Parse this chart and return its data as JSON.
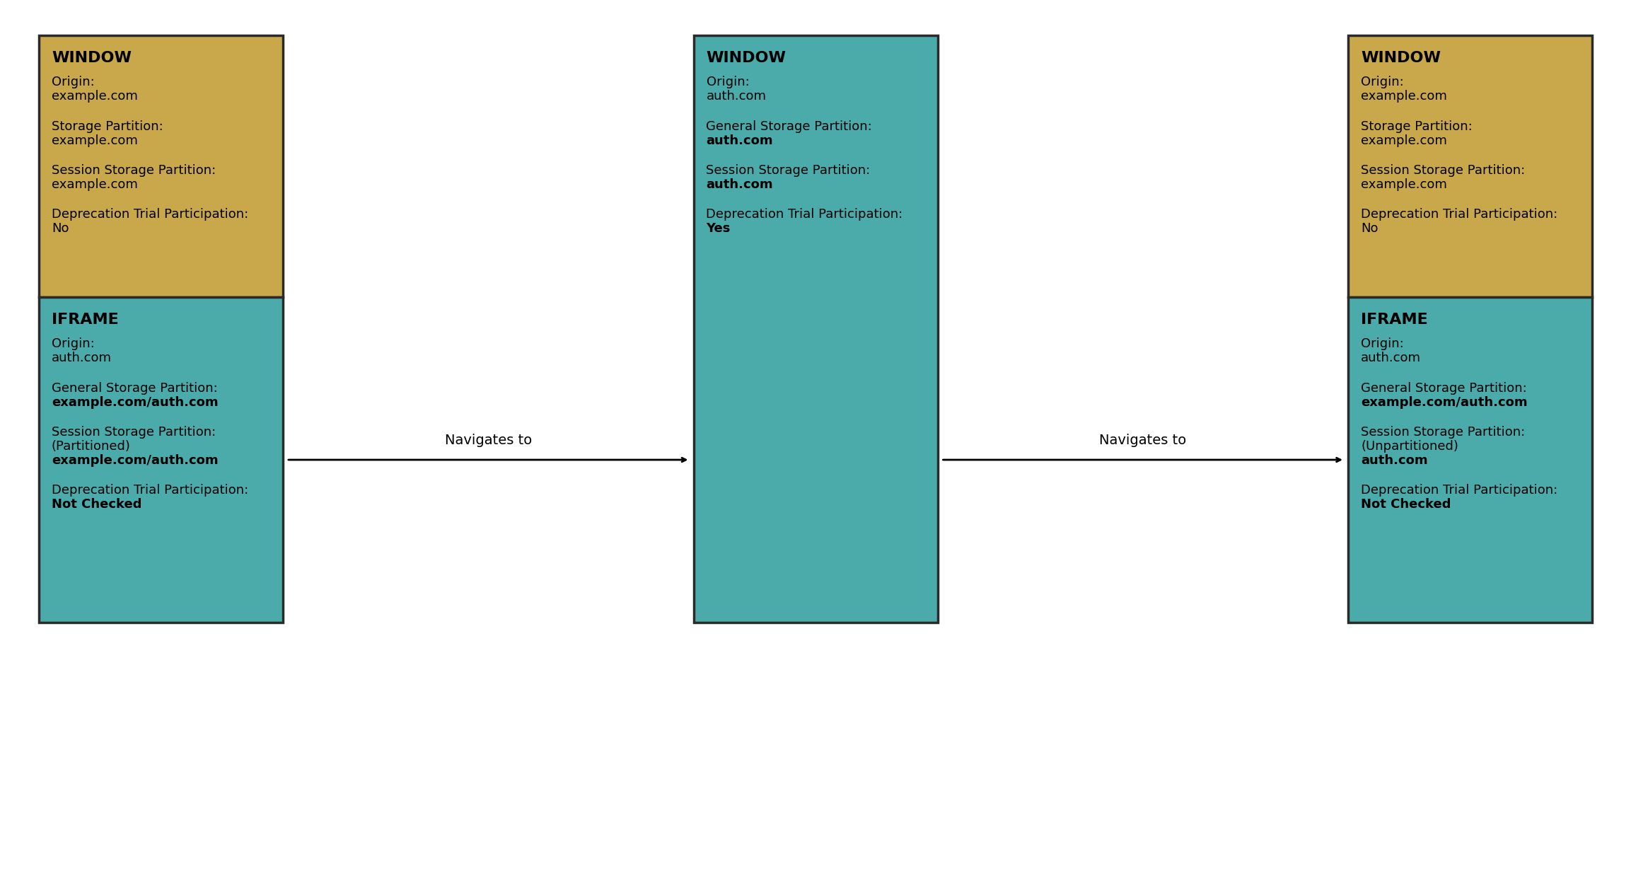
{
  "bg_color": "#ffffff",
  "gold_color": "#C8A84B",
  "teal_color": "#4AABAA",
  "border_color": "#2a2a2a",
  "text_color": "#000000",
  "box1_window": {
    "title": "WINDOW",
    "lines": [
      {
        "label": "Origin:",
        "value": "example.com",
        "bold_value": false
      },
      {
        "label": "Storage Partition:",
        "value": "example.com",
        "bold_value": false
      },
      {
        "label": "Session Storage Partition:",
        "value": "example.com",
        "bold_value": false
      },
      {
        "label": "Deprecation Trial Participation:",
        "value": "No",
        "bold_value": false
      }
    ]
  },
  "box1_iframe": {
    "title": "IFRAME",
    "lines": [
      {
        "label": "Origin:",
        "value": "auth.com",
        "bold_value": false
      },
      {
        "label": "General Storage Partition:",
        "value": "example.com/auth.com",
        "bold_value": true
      },
      {
        "label": "Session Storage Partition:",
        "value": "(Partitioned)",
        "value2": "example.com/auth.com",
        "bold_value": true
      },
      {
        "label": "Deprecation Trial Participation:",
        "value": "Not Checked",
        "bold_value": true
      }
    ]
  },
  "box2_window": {
    "title": "WINDOW",
    "lines": [
      {
        "label": "Origin:",
        "value": "auth.com",
        "bold_value": false
      },
      {
        "label": "General Storage Partition:",
        "value": "auth.com",
        "bold_value": true
      },
      {
        "label": "Session Storage Partition:",
        "value": "auth.com",
        "bold_value": true
      },
      {
        "label": "Deprecation Trial Participation:",
        "value": "Yes",
        "bold_value": true
      }
    ]
  },
  "box3_window": {
    "title": "WINDOW",
    "lines": [
      {
        "label": "Origin:",
        "value": "example.com",
        "bold_value": false
      },
      {
        "label": "Storage Partition:",
        "value": "example.com",
        "bold_value": false
      },
      {
        "label": "Session Storage Partition:",
        "value": "example.com",
        "bold_value": false
      },
      {
        "label": "Deprecation Trial Participation:",
        "value": "No",
        "bold_value": false
      }
    ]
  },
  "box3_iframe": {
    "title": "IFRAME",
    "lines": [
      {
        "label": "Origin:",
        "value": "auth.com",
        "bold_value": false
      },
      {
        "label": "General Storage Partition:",
        "value": "example.com/auth.com",
        "bold_value": true
      },
      {
        "label": "Session Storage Partition:",
        "value": "(Unpartitioned)",
        "value2": "auth.com",
        "bold_value": true
      },
      {
        "label": "Deprecation Trial Participation:",
        "value": "Not Checked",
        "bold_value": true
      }
    ]
  },
  "arrow1_label": "Navigates to",
  "arrow2_label": "Navigates to",
  "font_size_title": 16,
  "font_size_label": 13,
  "font_size_value": 13
}
